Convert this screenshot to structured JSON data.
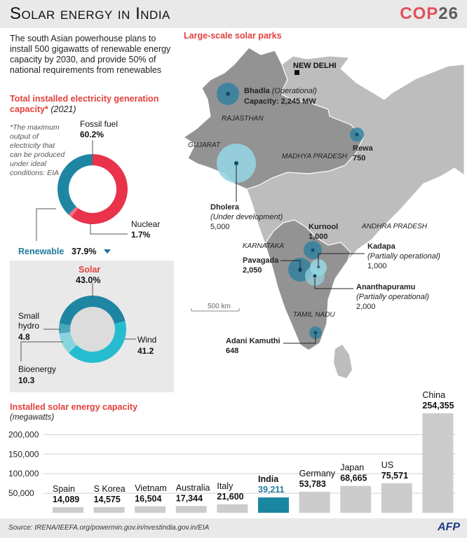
{
  "header": {
    "title": "Solar energy in India",
    "logo_cop": "COP",
    "logo_num": "26"
  },
  "intro": "The south Asian powerhouse plans to install 500 gigawatts of renewable energy capacity by 2030, and provide 50% of national requirements from renewables",
  "capacity_section": {
    "title": "Total installed electricity generation capacity*",
    "year": "(2021)",
    "footnote": "*The maximum output of electricity that can be produced under ideal conditions: EIA",
    "fossil_label": "Fossil fuel",
    "fossil_value": "60.2%",
    "nuclear_label": "Nuclear",
    "nuclear_value": "1.7%",
    "renewable_label": "Renewable",
    "renewable_value": "37.9%"
  },
  "solar_box": {
    "solar_label": "Solar",
    "solar_value": "43.0%",
    "small_hydro_label_1": "Small",
    "small_hydro_label_2": "hydro",
    "small_hydro_value": "4.8",
    "wind_label": "Wind",
    "wind_value": "41.2",
    "bio_label": "Bioenergy",
    "bio_value": "10.3"
  },
  "map": {
    "title": "Large-scale solar parks",
    "capital": "NEW DELHI",
    "states": {
      "rajasthan": "RAJASTHAN",
      "gujarat": "GUJARAT",
      "mp": "MADHYA PRADESH",
      "ap": "ANDHRA PRADESH",
      "karnataka": "KARNATAKA",
      "tn": "TAMIL NADU"
    },
    "scale": "500 km",
    "parks": {
      "bhadla": {
        "name": "Bhadla",
        "status": "(Operational)",
        "cap_prefix": "Capacity: ",
        "capacity": "2,245 MW"
      },
      "rewa": {
        "name": "Rewa",
        "capacity": "750"
      },
      "dholera": {
        "name": "Dholera",
        "status": "(Under development)",
        "capacity": "5,000"
      },
      "kurnool": {
        "name": "Kurnool",
        "capacity": "1,000"
      },
      "kadapa": {
        "name": "Kadapa",
        "status": "(Partially operational)",
        "capacity": "1,000"
      },
      "pavagada": {
        "name": "Pavagada",
        "capacity": "2,050"
      },
      "ananth": {
        "name": "Ananthapuramu",
        "status": "(Partially operational)",
        "capacity": "2,000"
      },
      "adani": {
        "name": "Adani Kamuthi",
        "capacity": "648"
      }
    }
  },
  "colors": {
    "fossil": "#e8334a",
    "renewable": "#1e86a3",
    "nuclear": "#f07080",
    "bar": "#cccccc",
    "india_bar": "#1a86a0",
    "map_land": "#bdbdbd",
    "map_state": "#8f8f8f"
  },
  "bar_section": {
    "title": "Installed solar energy capacity",
    "subtitle": "(megawatts)"
  },
  "chart_data": [
    {
      "type": "pie",
      "title": "Total installed electricity generation capacity* (2021)",
      "categories": [
        "Fossil fuel",
        "Renewable",
        "Nuclear"
      ],
      "values": [
        60.2,
        37.9,
        1.7
      ]
    },
    {
      "type": "pie",
      "title": "",
      "categories": [
        "Solar",
        "Wind",
        "Bioenergy",
        "Small hydro"
      ],
      "values": [
        43.0,
        41.2,
        10.3,
        4.8
      ]
    },
    {
      "type": "bar",
      "title": "Installed solar energy capacity",
      "ylabel": "(megawatts)",
      "categories": [
        "Spain",
        "S Korea",
        "Vietnam",
        "Australia",
        "Italy",
        "India",
        "Germany",
        "Japan",
        "US",
        "China"
      ],
      "values": [
        14089,
        14575,
        16504,
        17344,
        21600,
        39211,
        53783,
        68665,
        75571,
        254355
      ],
      "value_labels": [
        "14,089",
        "14,575",
        "16,504",
        "17,344",
        "21,600",
        "39,211",
        "53,783",
        "68,665",
        "75,571",
        "254,355"
      ],
      "yticks": [
        "50,000",
        "100,000",
        "150,000",
        "200,000"
      ],
      "ytick_values": [
        50000,
        100000,
        150000,
        200000
      ],
      "ylim": [
        0,
        260000
      ]
    }
  ],
  "footer": {
    "source": "Source: IRENA/IEEFA.org/powermin.gov.in/nvestindia.gov.in/EIA",
    "afp": "AFP"
  }
}
